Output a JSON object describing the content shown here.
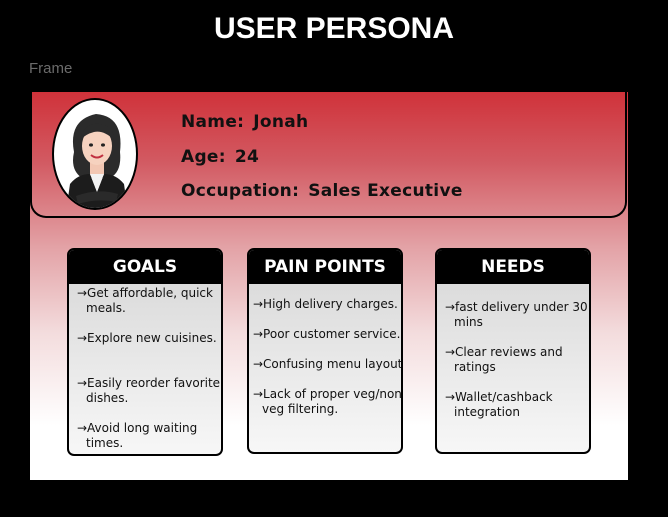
{
  "title": "USER PERSONA",
  "frame_label": "Frame",
  "persona": {
    "name_label": "Name:",
    "name": "Jonah",
    "age_label": "Age:",
    "age": "24",
    "occupation_label": "Occupation:",
    "occupation": "Sales Executive"
  },
  "goals": {
    "title": "GOALS",
    "items": [
      "→Get affordable, quick meals.",
      "→Explore new cuisines.",
      "→Easily reorder favorite dishes.",
      "→Avoid long waiting times."
    ]
  },
  "pain_points": {
    "title": "PAIN POINTS",
    "items": [
      "→High delivery charges.",
      "→Poor customer service.",
      "→Confusing menu layout",
      "→Lack of proper veg/non-veg filtering."
    ]
  },
  "needs": {
    "title": "NEEDS",
    "items": [
      "→fast delivery under 30 mins",
      "→Clear reviews and ratings",
      "→Wallet/cashback integration"
    ]
  },
  "colors": {
    "header_red": "#d0323a",
    "card_head": "#000000"
  }
}
